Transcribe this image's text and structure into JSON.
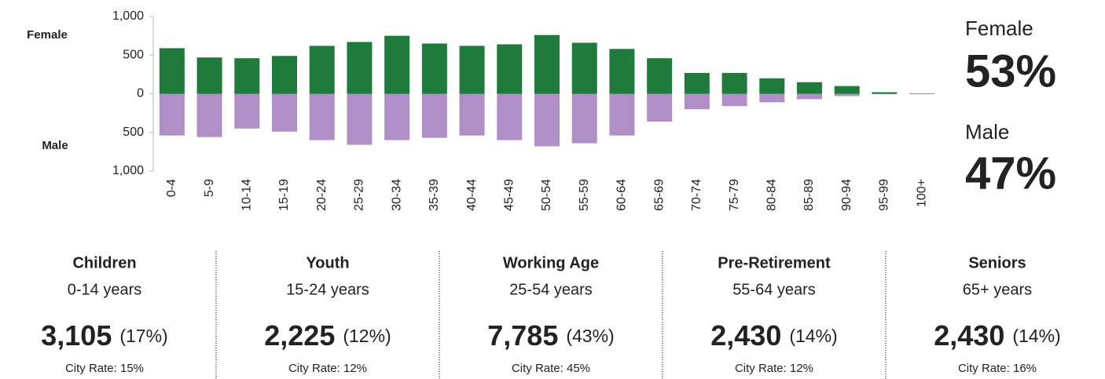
{
  "chart_data": {
    "type": "diverging-bar",
    "categories": [
      "0-4",
      "5-9",
      "10-14",
      "15-19",
      "20-24",
      "25-29",
      "30-34",
      "35-39",
      "40-44",
      "45-49",
      "50-54",
      "55-59",
      "60-64",
      "65-69",
      "70-74",
      "75-79",
      "80-84",
      "85-89",
      "90-94",
      "95-99",
      "100+"
    ],
    "series": [
      {
        "name": "Female",
        "color": "#1e7b3c",
        "values": [
          590,
          470,
          460,
          490,
          620,
          670,
          750,
          650,
          620,
          640,
          760,
          660,
          580,
          460,
          270,
          270,
          200,
          150,
          100,
          20,
          5
        ]
      },
      {
        "name": "Male",
        "color": "#b08fc7",
        "values": [
          -540,
          -560,
          -450,
          -490,
          -600,
          -660,
          -600,
          -570,
          -540,
          -600,
          -680,
          -640,
          -540,
          -360,
          -200,
          -160,
          -110,
          -70,
          -30,
          -5,
          -3
        ]
      }
    ],
    "ylim": [
      -1000,
      1000
    ],
    "yticks": [
      {
        "value": -1000,
        "label": "1,000"
      },
      {
        "value": -500,
        "label": "500"
      },
      0,
      500,
      {
        "value": 1000,
        "label": "1,000"
      }
    ],
    "shares": [
      {
        "name": "Female",
        "value": 53,
        "label": "53%",
        "color": "#1e7b3c"
      },
      {
        "name": "Male",
        "value": 47,
        "label": "47%",
        "color": "#7b2c8c"
      }
    ]
  },
  "groups": [
    {
      "title": "Children",
      "range": "0-14 years",
      "count": "3,105",
      "share": "(17%)",
      "city_rate": "City Rate:  15%"
    },
    {
      "title": "Youth",
      "range": "15-24 years",
      "count": "2,225",
      "share": "(12%)",
      "city_rate": "City Rate:  12%"
    },
    {
      "title": "Working Age",
      "range": "25-54 years",
      "count": "7,785",
      "share": "(43%)",
      "city_rate": "City Rate:  45%"
    },
    {
      "title": "Pre-Retirement",
      "range": "55-64 years",
      "count": "2,430",
      "share": "(14%)",
      "city_rate": "City Rate:  12%"
    },
    {
      "title": "Seniors",
      "range": "65+ years",
      "count": "2,430",
      "share": "(14%)",
      "city_rate": "City Rate:  16%"
    }
  ]
}
